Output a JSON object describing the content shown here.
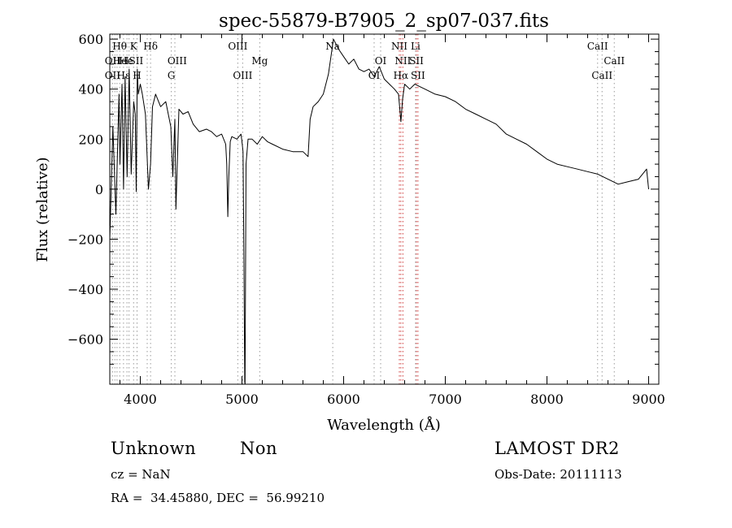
{
  "chart_data": {
    "type": "line",
    "title": "spec-55879-B7905_2_sp07-037.fits",
    "xlabel": "Wavelength (Å)",
    "ylabel": "Flux (relative)",
    "xlim": [
      3700,
      9100
    ],
    "ylim": [
      -780,
      620
    ],
    "xticks": [
      4000,
      5000,
      6000,
      7000,
      8000,
      9000
    ],
    "xtick_labels": [
      "4000",
      "5000",
      "6000",
      "7000",
      "8000",
      "9000"
    ],
    "yticks": [
      -600,
      -400,
      -200,
      0,
      200,
      400,
      600
    ],
    "ytick_labels": [
      "−600",
      "−400",
      "−200",
      "0",
      "200",
      "400",
      "600"
    ],
    "grid": false,
    "series": [
      {
        "x": [
          3700,
          3730,
          3760,
          3790,
          3800,
          3820,
          3835,
          3850,
          3870,
          3890,
          3910,
          3935,
          3950,
          3960,
          3970,
          3980,
          4000,
          4020,
          4050,
          4080,
          4101,
          4120,
          4150,
          4200,
          4250,
          4300,
          4320,
          4340,
          4350,
          4380,
          4420,
          4470,
          4520,
          4580,
          4650,
          4700,
          4750,
          4800,
          4840,
          4850,
          4861,
          4870,
          4885,
          4900,
          4950,
          4990,
          5000,
          5010,
          5020,
          5027,
          5030,
          5040,
          5060,
          5100,
          5150,
          5200,
          5250,
          5300,
          5400,
          5500,
          5600,
          5650,
          5670,
          5700,
          5750,
          5800,
          5850,
          5900,
          5950,
          6000,
          6050,
          6100,
          6150,
          6200,
          6250,
          6300,
          6350,
          6400,
          6450,
          6500,
          6540,
          6563,
          6580,
          6600,
          6650,
          6700,
          6750,
          6800,
          6900,
          7000,
          7100,
          7200,
          7300,
          7400,
          7500,
          7600,
          7700,
          7800,
          7900,
          8000,
          8100,
          8200,
          8300,
          8400,
          8500,
          8600,
          8700,
          8800,
          8900,
          8980,
          9000
        ],
        "y": [
          -200,
          250,
          -100,
          380,
          100,
          420,
          0,
          450,
          50,
          480,
          60,
          350,
          300,
          -10,
          480,
          380,
          420,
          380,
          300,
          0,
          100,
          330,
          380,
          330,
          350,
          250,
          50,
          280,
          -80,
          320,
          300,
          310,
          260,
          230,
          240,
          230,
          210,
          220,
          180,
          100,
          -110,
          50,
          190,
          210,
          200,
          220,
          190,
          150,
          -300,
          -770,
          -780,
          100,
          200,
          200,
          180,
          210,
          190,
          180,
          160,
          150,
          150,
          130,
          280,
          330,
          350,
          380,
          460,
          600,
          560,
          530,
          500,
          520,
          480,
          470,
          480,
          450,
          490,
          440,
          420,
          400,
          380,
          270,
          360,
          420,
          400,
          420,
          410,
          400,
          380,
          370,
          350,
          320,
          300,
          280,
          260,
          220,
          200,
          180,
          150,
          120,
          100,
          90,
          80,
          70,
          60,
          40,
          20,
          30,
          40,
          80,
          0
        ]
      }
    ],
    "line_markers": [
      {
        "x": 3727,
        "color": "#9a9a9a"
      },
      {
        "x": 3750,
        "color": "#9a9a9a"
      },
      {
        "x": 3771,
        "color": "#9a9a9a"
      },
      {
        "x": 3798,
        "color": "#9a9a9a"
      },
      {
        "x": 3835,
        "color": "#9a9a9a"
      },
      {
        "x": 3869,
        "color": "#9a9a9a"
      },
      {
        "x": 3889,
        "color": "#9a9a9a"
      },
      {
        "x": 3934,
        "color": "#9a9a9a"
      },
      {
        "x": 3968,
        "color": "#9a9a9a"
      },
      {
        "x": 4068,
        "color": "#9a9a9a"
      },
      {
        "x": 4101,
        "color": "#9a9a9a"
      },
      {
        "x": 4305,
        "color": "#9a9a9a"
      },
      {
        "x": 4340,
        "color": "#9a9a9a"
      },
      {
        "x": 4959,
        "color": "#9a9a9a"
      },
      {
        "x": 5007,
        "color": "#9a9a9a"
      },
      {
        "x": 5175,
        "color": "#9a9a9a"
      },
      {
        "x": 5893,
        "color": "#9a9a9a"
      },
      {
        "x": 6300,
        "color": "#9a9a9a"
      },
      {
        "x": 6364,
        "color": "#9a9a9a"
      },
      {
        "x": 6548,
        "color": "#d04040"
      },
      {
        "x": 6563,
        "color": "#d04040"
      },
      {
        "x": 6583,
        "color": "#d04040"
      },
      {
        "x": 6707,
        "color": "#9a9a9a"
      },
      {
        "x": 6716,
        "color": "#d04040"
      },
      {
        "x": 6731,
        "color": "#d04040"
      },
      {
        "x": 8498,
        "color": "#9a9a9a"
      },
      {
        "x": 8542,
        "color": "#9a9a9a"
      },
      {
        "x": 8662,
        "color": "#9a9a9a"
      }
    ],
    "line_labels": [
      {
        "text": "Hθ",
        "x": 3797,
        "row": 1
      },
      {
        "text": "K",
        "x": 3934,
        "row": 1
      },
      {
        "text": "Hδ",
        "x": 4101,
        "row": 1
      },
      {
        "text": "OIII",
        "x": 4959,
        "row": 1
      },
      {
        "text": "Na",
        "x": 5893,
        "row": 1
      },
      {
        "text": "NII",
        "x": 6548,
        "row": 1
      },
      {
        "text": "Li",
        "x": 6707,
        "row": 1
      },
      {
        "text": "CaII",
        "x": 8498,
        "row": 1
      },
      {
        "text": "OII",
        "x": 3727,
        "row": 2
      },
      {
        "text": "He",
        "x": 3800,
        "row": 2
      },
      {
        "text": "He",
        "x": 3860,
        "row": 2
      },
      {
        "text": "ISII",
        "x": 3940,
        "row": 2
      },
      {
        "text": "OIII",
        "x": 4363,
        "row": 2
      },
      {
        "text": "Mg",
        "x": 5175,
        "row": 2
      },
      {
        "text": "OI",
        "x": 6364,
        "row": 2
      },
      {
        "text": "NII",
        "x": 6583,
        "row": 2
      },
      {
        "text": "SII",
        "x": 6716,
        "row": 2
      },
      {
        "text": "CaII",
        "x": 8662,
        "row": 2
      },
      {
        "text": "OII",
        "x": 3727,
        "row": 3
      },
      {
        "text": "Hε",
        "x": 3835,
        "row": 3
      },
      {
        "text": "H",
        "x": 3968,
        "row": 3
      },
      {
        "text": "G",
        "x": 4305,
        "row": 3
      },
      {
        "text": "OIII",
        "x": 5007,
        "row": 3
      },
      {
        "text": "OI",
        "x": 6300,
        "row": 3
      },
      {
        "text": "Hα",
        "x": 6563,
        "row": 3
      },
      {
        "text": "SII",
        "x": 6731,
        "row": 3
      },
      {
        "text": "CaII",
        "x": 8542,
        "row": 3
      }
    ]
  },
  "info": {
    "class_label": "Unknown",
    "subclass_label": "Non",
    "redshift_text": "cz = NaN",
    "coords_text": "RA =  34.45880, DEC =  56.99210",
    "survey_label": "LAMOST DR2",
    "obs_date_text": "Obs-Date: 20111113"
  }
}
